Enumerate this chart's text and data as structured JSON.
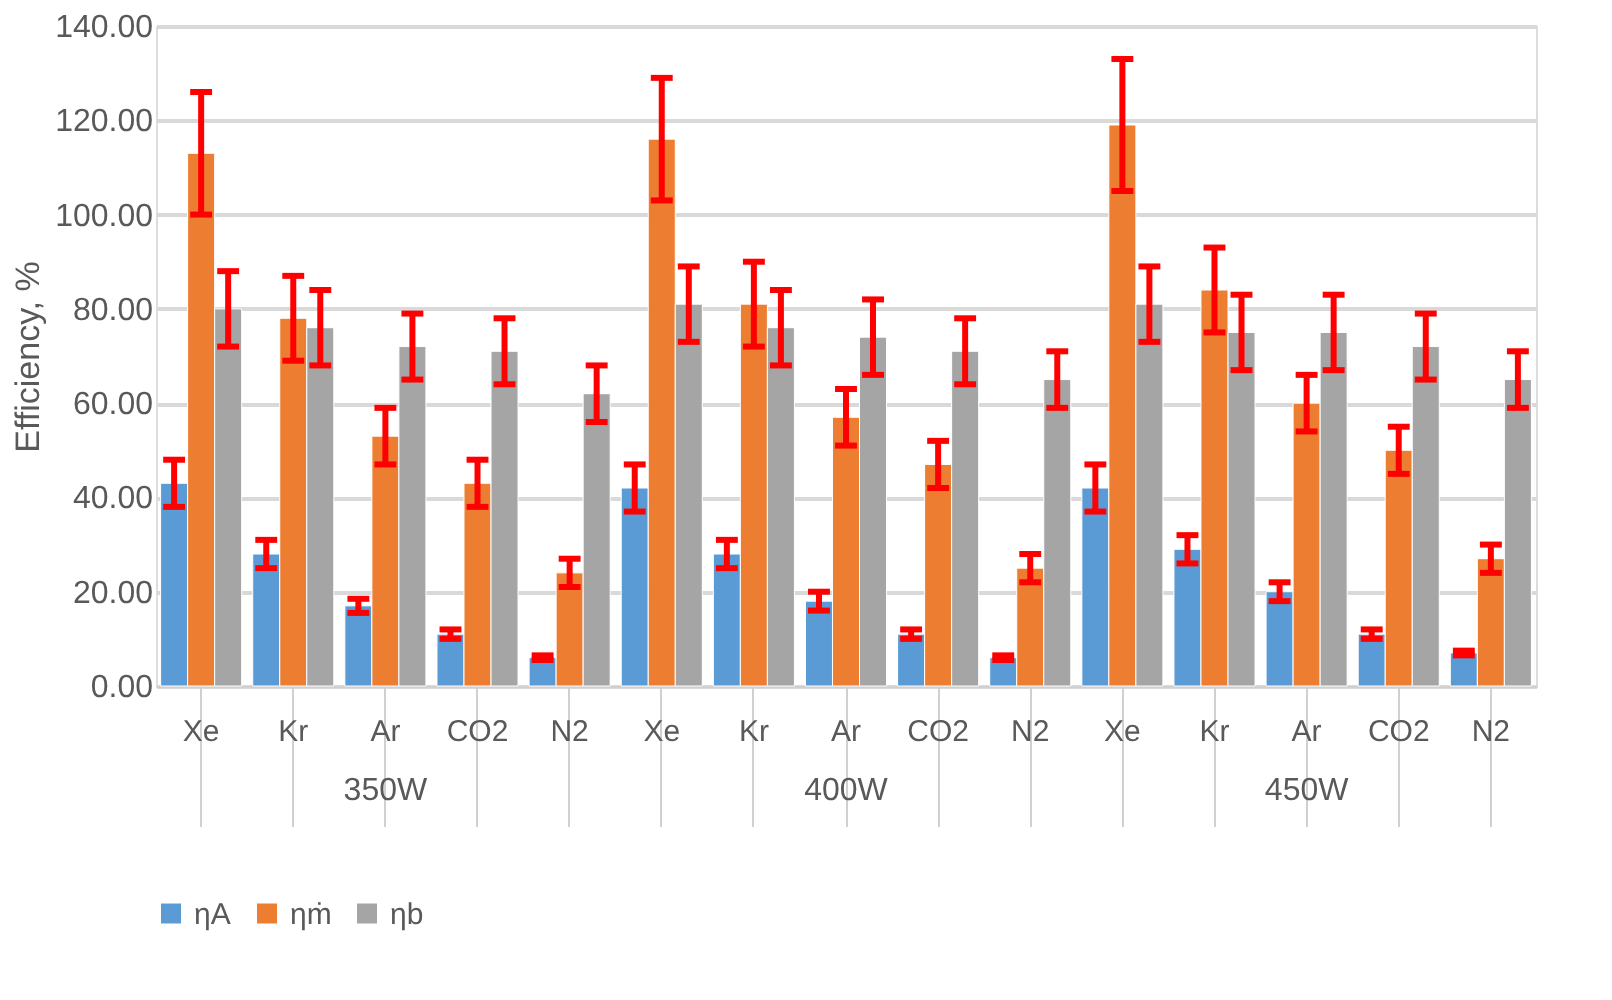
{
  "chart_data": {
    "type": "bar",
    "ylabel": "Efficiency, %",
    "categories": [
      "Xe",
      "Kr",
      "Ar",
      "CO2",
      "N2",
      "Xe",
      "Kr",
      "Ar",
      "CO2",
      "N2",
      "Xe",
      "Kr",
      "Ar",
      "CO2",
      "N2"
    ],
    "annotations": [
      "350W",
      "400W",
      "450W"
    ],
    "series": [
      {
        "name": "ηA",
        "color": "#5b9bd5",
        "values": [
          43,
          28,
          17,
          11,
          6,
          42,
          28,
          18,
          11,
          6,
          42,
          29,
          20,
          11,
          7
        ],
        "errors": [
          5,
          3,
          1.5,
          1,
          0.5,
          5,
          3,
          2,
          1,
          0.5,
          5,
          3,
          2,
          1,
          0.5
        ]
      },
      {
        "name": "ηṁ",
        "color": "#ed7d31",
        "values": [
          113,
          78,
          53,
          43,
          24,
          116,
          81,
          57,
          47,
          25,
          119,
          84,
          60,
          50,
          27
        ],
        "errors": [
          13,
          9,
          6,
          5,
          3,
          13,
          9,
          6,
          5,
          3,
          14,
          9,
          6,
          5,
          3
        ]
      },
      {
        "name": "ηb",
        "color": "#a5a5a5",
        "values": [
          80,
          76,
          72,
          71,
          62,
          81,
          76,
          74,
          71,
          65,
          81,
          75,
          75,
          72,
          65
        ],
        "errors": [
          8,
          8,
          7,
          7,
          6,
          8,
          8,
          8,
          7,
          6,
          8,
          8,
          8,
          7,
          6
        ]
      }
    ],
    "ylim": [
      0,
      140
    ],
    "yticks": [
      {
        "value": 0,
        "label": "0.00"
      },
      {
        "value": 20,
        "label": "20.00"
      },
      {
        "value": 40,
        "label": "40.00"
      },
      {
        "value": 60,
        "label": "60.00"
      },
      {
        "value": 80,
        "label": "80.00"
      },
      {
        "value": 100,
        "label": "100.00"
      },
      {
        "value": 120,
        "label": "120.00"
      },
      {
        "value": 140,
        "label": "140.00"
      }
    ],
    "grid": "y",
    "legend": "bottom"
  }
}
